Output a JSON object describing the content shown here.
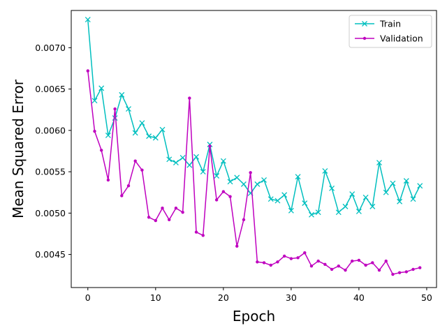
{
  "chart_data": {
    "type": "line",
    "xlabel": "Epoch",
    "ylabel": "Mean Squared Error",
    "xlim": [
      -2.45,
      51.45
    ],
    "ylim": [
      0.0041,
      0.00745
    ],
    "x_ticks": [
      0,
      10,
      20,
      30,
      40,
      50
    ],
    "y_ticks": [
      0.0045,
      0.005,
      0.0055,
      0.006,
      0.0065,
      0.007
    ],
    "y_tick_labels": [
      "0.0045",
      "0.0050",
      "0.0055",
      "0.0060",
      "0.0065",
      "0.0070"
    ],
    "grid": false,
    "legend_position": "top-right",
    "x": [
      0,
      1,
      2,
      3,
      4,
      5,
      6,
      7,
      8,
      9,
      10,
      11,
      12,
      13,
      14,
      15,
      16,
      17,
      18,
      19,
      20,
      21,
      22,
      23,
      24,
      25,
      26,
      27,
      28,
      29,
      30,
      31,
      32,
      33,
      34,
      35,
      36,
      37,
      38,
      39,
      40,
      41,
      42,
      43,
      44,
      45,
      46,
      47,
      48,
      49
    ],
    "series": [
      {
        "name": "Train",
        "color": "#00bfbf",
        "marker": "x",
        "values": [
          0.00734,
          0.00636,
          0.00651,
          0.00594,
          0.00615,
          0.00643,
          0.00626,
          0.00597,
          0.00609,
          0.00593,
          0.00591,
          0.00601,
          0.00565,
          0.00561,
          0.00567,
          0.00558,
          0.00568,
          0.0055,
          0.00583,
          0.00545,
          0.00563,
          0.00538,
          0.00543,
          0.00535,
          0.00524,
          0.00535,
          0.0054,
          0.00517,
          0.00515,
          0.00522,
          0.00503,
          0.00544,
          0.00512,
          0.00498,
          0.00501,
          0.00551,
          0.0053,
          0.00501,
          0.00508,
          0.00523,
          0.00502,
          0.00519,
          0.00508,
          0.00561,
          0.00525,
          0.00536,
          0.00514,
          0.00539,
          0.00517,
          0.00533
        ]
      },
      {
        "name": "Validation",
        "color": "#bf00bf",
        "marker": "dot",
        "values": [
          0.00672,
          0.00599,
          0.00576,
          0.0054,
          0.00626,
          0.00521,
          0.00533,
          0.00563,
          0.00552,
          0.00495,
          0.00491,
          0.00506,
          0.00492,
          0.00506,
          0.00501,
          0.00639,
          0.00477,
          0.00473,
          0.00581,
          0.00516,
          0.00526,
          0.0052,
          0.0046,
          0.00492,
          0.00549,
          0.00441,
          0.0044,
          0.00437,
          0.00441,
          0.00448,
          0.00445,
          0.00446,
          0.00452,
          0.00436,
          0.00442,
          0.00438,
          0.00432,
          0.00436,
          0.00431,
          0.00442,
          0.00443,
          0.00437,
          0.0044,
          0.00431,
          0.00442,
          0.00426,
          0.00428,
          0.00429,
          0.00432,
          0.00434
        ]
      }
    ]
  }
}
